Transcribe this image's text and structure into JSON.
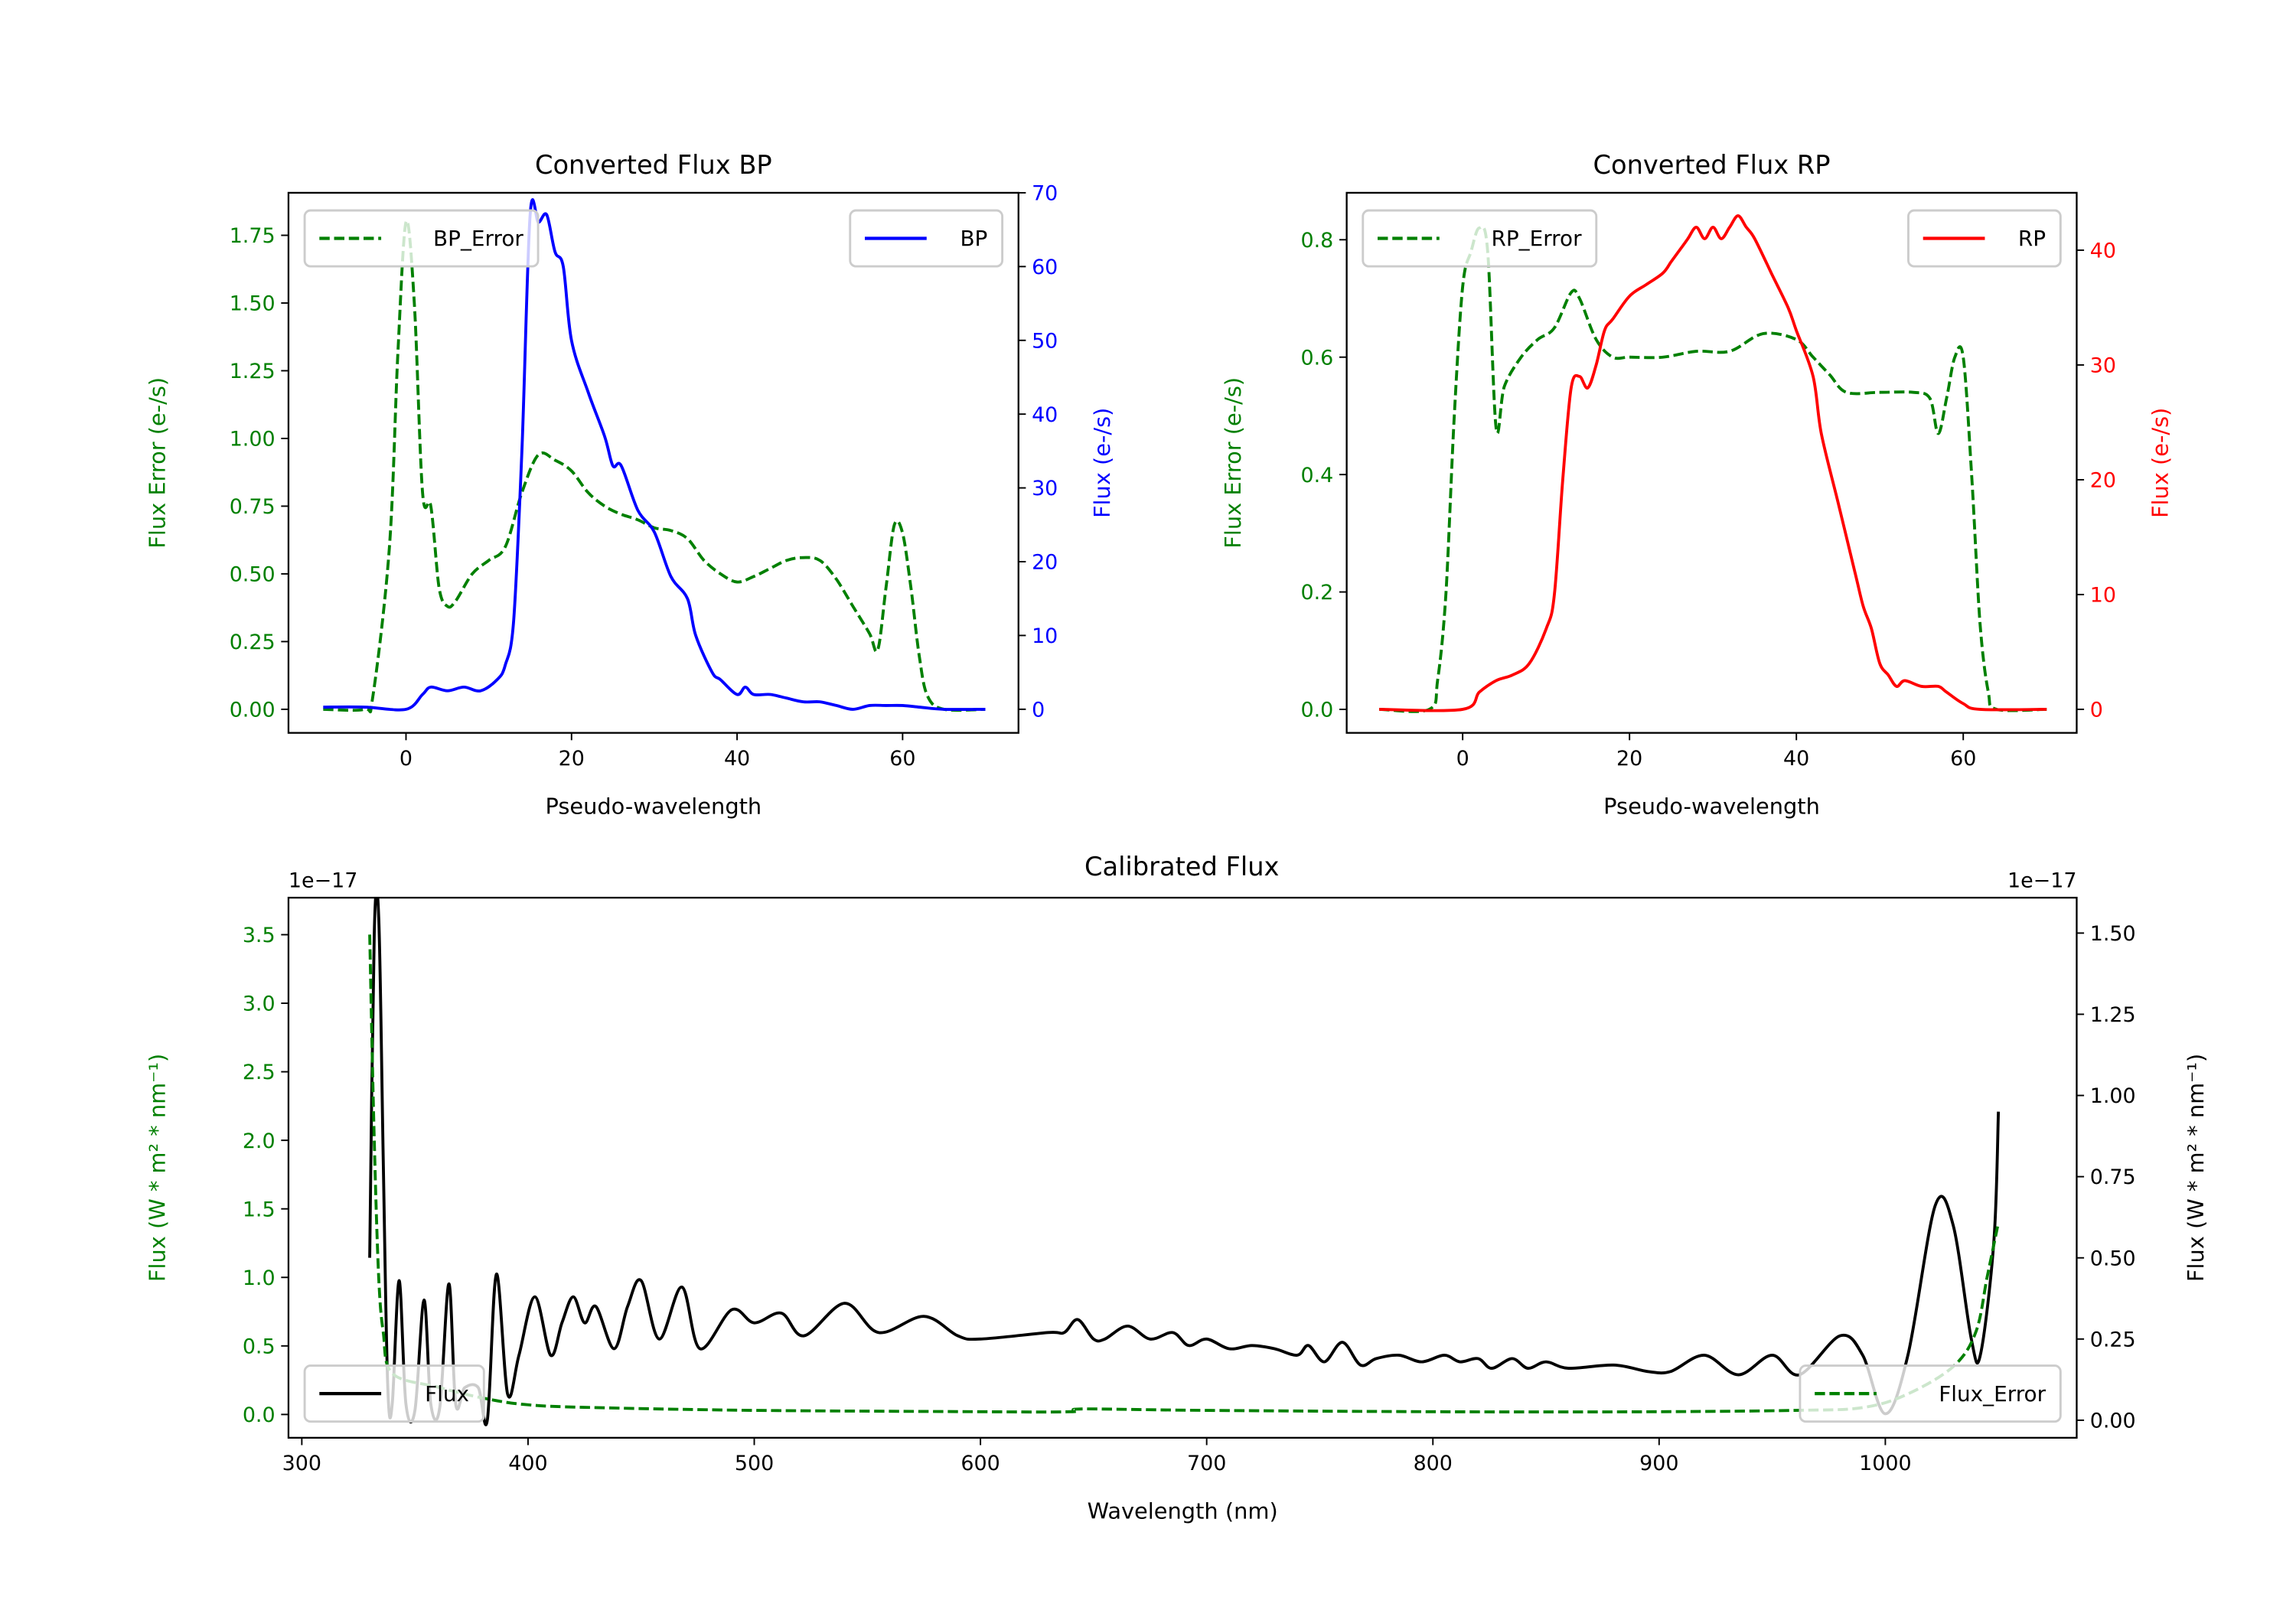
{
  "chart_data": [
    {
      "id": "bp",
      "type": "line",
      "title": "Converted Flux BP",
      "xlabel": "Pseudo-wavelength",
      "ylabel_left": "Flux Error (e-/s)",
      "ylabel_right": "Flux (e-/s)",
      "xlim": [
        -14.2,
        74
      ],
      "ylim_left": [
        -0.087,
        1.907
      ],
      "ylim_right": [
        -3.2,
        70
      ],
      "xticks": [
        {
          "v": 0,
          "label": "0"
        },
        {
          "v": 20,
          "label": "20"
        },
        {
          "v": 40,
          "label": "40"
        },
        {
          "v": 60,
          "label": "60"
        }
      ],
      "yticks_left": [
        {
          "v": 0,
          "label": "0.00"
        },
        {
          "v": 0.25,
          "label": "0.25"
        },
        {
          "v": 0.5,
          "label": "0.50"
        },
        {
          "v": 0.75,
          "label": "0.75"
        },
        {
          "v": 1.0,
          "label": "1.00"
        },
        {
          "v": 1.25,
          "label": "1.25"
        },
        {
          "v": 1.5,
          "label": "1.50"
        },
        {
          "v": 1.75,
          "label": "1.75"
        }
      ],
      "yticks_right": [
        {
          "v": 0,
          "label": "0"
        },
        {
          "v": 10,
          "label": "10"
        },
        {
          "v": 20,
          "label": "20"
        },
        {
          "v": 30,
          "label": "30"
        },
        {
          "v": 40,
          "label": "40"
        },
        {
          "v": 50,
          "label": "50"
        },
        {
          "v": 60,
          "label": "60"
        },
        {
          "v": 70,
          "label": "70"
        }
      ],
      "left_color": "#008000",
      "right_color": "#0000ff",
      "series": [
        {
          "name": "BP_Error",
          "axis": "left",
          "color": "#008000",
          "dashed": true,
          "legend": "upper-left",
          "x": [
            -10,
            -5,
            -4,
            -2,
            -1,
            0,
            1,
            2,
            3,
            4,
            5,
            6,
            8,
            10,
            12,
            14,
            16,
            18,
            20,
            22,
            24,
            26,
            28,
            30,
            32,
            34,
            36,
            38,
            40,
            42,
            44,
            46,
            48,
            50,
            52,
            54,
            56,
            57,
            58,
            59,
            60,
            61,
            62,
            63,
            65,
            70
          ],
          "y": [
            0,
            0,
            0.05,
            0.6,
            1.3,
            1.8,
            1.5,
            0.8,
            0.75,
            0.45,
            0.38,
            0.4,
            0.5,
            0.55,
            0.6,
            0.8,
            0.94,
            0.92,
            0.88,
            0.8,
            0.75,
            0.72,
            0.7,
            0.67,
            0.66,
            0.63,
            0.55,
            0.5,
            0.47,
            0.49,
            0.52,
            0.55,
            0.56,
            0.55,
            0.48,
            0.38,
            0.28,
            0.22,
            0.45,
            0.68,
            0.65,
            0.45,
            0.2,
            0.05,
            0,
            0
          ]
        },
        {
          "name": "BP",
          "axis": "right",
          "color": "#0000ff",
          "dashed": false,
          "legend": "upper-right",
          "x": [
            -10,
            -5,
            0,
            2,
            3,
            5,
            7,
            9,
            11,
            12,
            13,
            14,
            15,
            16,
            17,
            18,
            19,
            20,
            22,
            24,
            25,
            26,
            28,
            30,
            32,
            34,
            35,
            37,
            38,
            40,
            41,
            42,
            44,
            46,
            48,
            50,
            52,
            54,
            56,
            58,
            60,
            62,
            65,
            70
          ],
          "y": [
            0.3,
            0.3,
            0,
            2,
            3,
            2.5,
            3,
            2.5,
            4,
            6,
            12,
            35,
            67,
            66,
            67,
            62,
            60,
            50,
            43,
            37,
            33,
            33,
            27,
            24,
            18,
            15,
            10,
            5,
            4,
            2,
            3,
            2,
            2,
            1.5,
            1,
            1,
            0.5,
            0,
            0.5,
            0.5,
            0.5,
            0.3,
            0,
            0
          ]
        }
      ]
    },
    {
      "id": "rp",
      "type": "line",
      "title": "Converted Flux RP",
      "xlabel": "Pseudo-wavelength",
      "ylabel_left": "Flux Error (e-/s)",
      "ylabel_right": "Flux (e-/s)",
      "xlim": [
        -13.9,
        73.6
      ],
      "ylim_left": [
        -0.04,
        0.88
      ],
      "ylim_right": [
        -2.05,
        45
      ],
      "xticks": [
        {
          "v": 0,
          "label": "0"
        },
        {
          "v": 20,
          "label": "20"
        },
        {
          "v": 40,
          "label": "40"
        },
        {
          "v": 60,
          "label": "60"
        }
      ],
      "yticks_left": [
        {
          "v": 0,
          "label": "0.0"
        },
        {
          "v": 0.2,
          "label": "0.2"
        },
        {
          "v": 0.4,
          "label": "0.4"
        },
        {
          "v": 0.6,
          "label": "0.6"
        },
        {
          "v": 0.8,
          "label": "0.8"
        }
      ],
      "yticks_right": [
        {
          "v": 0,
          "label": "0"
        },
        {
          "v": 10,
          "label": "10"
        },
        {
          "v": 20,
          "label": "20"
        },
        {
          "v": 30,
          "label": "30"
        },
        {
          "v": 40,
          "label": "40"
        }
      ],
      "left_color": "#008000",
      "right_color": "#ff0000",
      "series": [
        {
          "name": "RP_Error",
          "axis": "left",
          "color": "#008000",
          "dashed": true,
          "legend": "upper-left",
          "x": [
            -10,
            -4,
            -3,
            -2,
            -1,
            0,
            1,
            2,
            3,
            4,
            5,
            7,
            9,
            11,
            13,
            14,
            16,
            18,
            20,
            24,
            28,
            32,
            36,
            40,
            42,
            44,
            46,
            50,
            54,
            56,
            57,
            58,
            59,
            60,
            61,
            62,
            63,
            64,
            70
          ],
          "y": [
            0,
            0,
            0.05,
            0.2,
            0.5,
            0.72,
            0.78,
            0.82,
            0.78,
            0.48,
            0.55,
            0.6,
            0.63,
            0.65,
            0.71,
            0.7,
            0.63,
            0.6,
            0.6,
            0.6,
            0.61,
            0.61,
            0.64,
            0.63,
            0.6,
            0.57,
            0.54,
            0.54,
            0.54,
            0.53,
            0.47,
            0.53,
            0.6,
            0.6,
            0.4,
            0.15,
            0.03,
            0,
            0
          ]
        },
        {
          "name": "RP",
          "axis": "right",
          "color": "#ff0000",
          "dashed": false,
          "legend": "upper-right",
          "x": [
            -10,
            0,
            2,
            4,
            6,
            8,
            10,
            11,
            12,
            13,
            14,
            15,
            16,
            17,
            18,
            20,
            22,
            24,
            25,
            26,
            27,
            28,
            29,
            30,
            31,
            32,
            33,
            34,
            35,
            37,
            39,
            40,
            42,
            43,
            45,
            47,
            48,
            49,
            50,
            51,
            52,
            53,
            55,
            57,
            58,
            60,
            62,
            70
          ],
          "y": [
            0,
            0,
            1.5,
            2.5,
            3,
            4,
            7,
            10,
            20,
            28,
            29,
            28,
            30,
            33,
            34,
            36,
            37,
            38,
            39,
            40,
            41,
            42,
            41,
            42,
            41,
            42,
            43,
            42,
            41,
            38,
            35,
            33,
            29,
            24,
            18,
            12,
            9,
            7,
            4,
            3,
            2,
            2.5,
            2,
            2,
            1.5,
            0.5,
            0,
            0
          ]
        }
      ]
    },
    {
      "id": "cal",
      "type": "line",
      "title": "Calibrated Flux",
      "xlabel": "Wavelength (nm)",
      "ylabel_left": "Flux (W * m² * nm⁻¹)",
      "ylabel_right": "Flux (W * m² * nm⁻¹)",
      "offset_left": "1e−17",
      "offset_right": "1e−17",
      "xlim": [
        294.1,
        1084.6
      ],
      "ylim_left": [
        -0.17,
        3.77
      ],
      "ylim_right": [
        -0.054,
        1.609
      ],
      "xticks": [
        {
          "v": 300,
          "label": "300"
        },
        {
          "v": 400,
          "label": "400"
        },
        {
          "v": 500,
          "label": "500"
        },
        {
          "v": 600,
          "label": "600"
        },
        {
          "v": 700,
          "label": "700"
        },
        {
          "v": 800,
          "label": "800"
        },
        {
          "v": 900,
          "label": "900"
        },
        {
          "v": 1000,
          "label": "1000"
        }
      ],
      "yticks_left": [
        {
          "v": 0,
          "label": "0.0"
        },
        {
          "v": 0.5,
          "label": "0.5"
        },
        {
          "v": 1.0,
          "label": "1.0"
        },
        {
          "v": 1.5,
          "label": "1.5"
        },
        {
          "v": 2.0,
          "label": "2.0"
        },
        {
          "v": 2.5,
          "label": "2.5"
        },
        {
          "v": 3.0,
          "label": "3.0"
        },
        {
          "v": 3.5,
          "label": "3.5"
        }
      ],
      "yticks_right": [
        {
          "v": 0,
          "label": "0.00"
        },
        {
          "v": 0.25,
          "label": "0.25"
        },
        {
          "v": 0.5,
          "label": "0.50"
        },
        {
          "v": 0.75,
          "label": "0.75"
        },
        {
          "v": 1.0,
          "label": "1.00"
        },
        {
          "v": 1.25,
          "label": "1.25"
        },
        {
          "v": 1.5,
          "label": "1.50"
        }
      ],
      "left_color": "#008000",
      "right_color": "#000000",
      "series": [
        {
          "name": "Flux",
          "axis": "right",
          "color": "#000000",
          "dashed": false,
          "legend": "lower-left",
          "x": [
            330,
            332,
            334,
            336,
            338,
            340,
            343,
            346,
            350,
            354,
            357,
            361,
            365,
            368,
            372,
            378,
            382,
            386,
            391,
            396,
            403,
            410,
            415,
            420,
            425,
            430,
            438,
            444,
            450,
            458,
            468,
            476,
            490,
            500,
            512,
            522,
            540,
            555,
            575,
            590,
            600,
            630,
            637,
            643,
            650,
            655,
            665,
            675,
            685,
            692,
            700,
            710,
            720,
            730,
            740,
            745,
            752,
            760,
            768,
            775,
            785,
            795,
            805,
            812,
            820,
            826,
            835,
            842,
            850,
            860,
            880,
            895,
            905,
            920,
            935,
            950,
            962,
            980,
            990,
            1000,
            1010,
            1022,
            1030,
            1038,
            1042,
            1048,
            1050
          ],
          "y": [
            0.5,
            1.5,
            1.55,
            0.8,
            0.1,
            0.05,
            0.43,
            0.05,
            0.03,
            0.37,
            0.05,
            0.04,
            0.42,
            0.05,
            0.1,
            0.1,
            0.0,
            0.45,
            0.08,
            0.2,
            0.38,
            0.2,
            0.3,
            0.38,
            0.3,
            0.35,
            0.22,
            0.35,
            0.43,
            0.25,
            0.41,
            0.22,
            0.34,
            0.3,
            0.33,
            0.26,
            0.36,
            0.27,
            0.32,
            0.26,
            0.25,
            0.27,
            0.27,
            0.31,
            0.25,
            0.25,
            0.29,
            0.25,
            0.27,
            0.23,
            0.25,
            0.22,
            0.23,
            0.22,
            0.2,
            0.23,
            0.18,
            0.24,
            0.17,
            0.19,
            0.2,
            0.18,
            0.2,
            0.18,
            0.19,
            0.16,
            0.19,
            0.16,
            0.18,
            0.16,
            0.17,
            0.15,
            0.15,
            0.2,
            0.14,
            0.2,
            0.14,
            0.26,
            0.2,
            0.02,
            0.2,
            0.66,
            0.6,
            0.25,
            0.2,
            0.55,
            0.95
          ]
        },
        {
          "name": "Flux_Error",
          "axis": "left",
          "color": "#008000",
          "dashed": true,
          "legend": "lower-right",
          "x": [
            330,
            332,
            334,
            336,
            340,
            360,
            380,
            400,
            430,
            500,
            600,
            640,
            645,
            700,
            800,
            900,
            960,
            990,
            1010,
            1030,
            1040,
            1045,
            1050
          ],
          "y": [
            3.5,
            2.0,
            1.0,
            0.6,
            0.3,
            0.2,
            0.12,
            0.07,
            0.05,
            0.03,
            0.02,
            0.02,
            0.04,
            0.03,
            0.02,
            0.02,
            0.03,
            0.05,
            0.15,
            0.35,
            0.6,
            1.0,
            1.4
          ]
        }
      ]
    }
  ]
}
